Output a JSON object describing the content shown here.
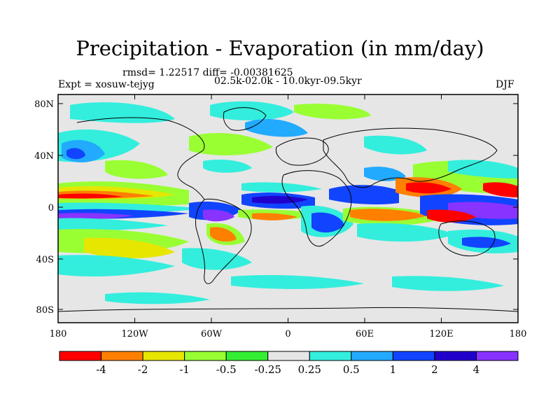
{
  "title": "Precipitation - Evaporation (in mm/day)",
  "stats": "rmsd= 1.22517 diff= -0.00381625",
  "period": "02.5k-02.0k - 10.0kyr-09.5kyr",
  "experiment": "Expt = xosuw-tejyg",
  "season": "DJF",
  "axes": {
    "lat_ticks": [
      "80N",
      "40N",
      "0",
      "40S",
      "80S"
    ],
    "lon_ticks": [
      "180",
      "120W",
      "60W",
      "0",
      "60E",
      "120E",
      "180"
    ]
  },
  "colorbar": {
    "colors": [
      "#ff0000",
      "#ff8000",
      "#e6e600",
      "#99ff33",
      "#33ee33",
      "#e6e6e6",
      "#33eedd",
      "#22aaff",
      "#1144ff",
      "#2200cc",
      "#8833ff"
    ],
    "labels": [
      "-4",
      "-2",
      "-1",
      "-0.5",
      "-0.25",
      "0.25",
      "0.5",
      "1",
      "2",
      "4"
    ]
  },
  "colors": {
    "background": "#e6e6e6",
    "frame": "#000000"
  }
}
